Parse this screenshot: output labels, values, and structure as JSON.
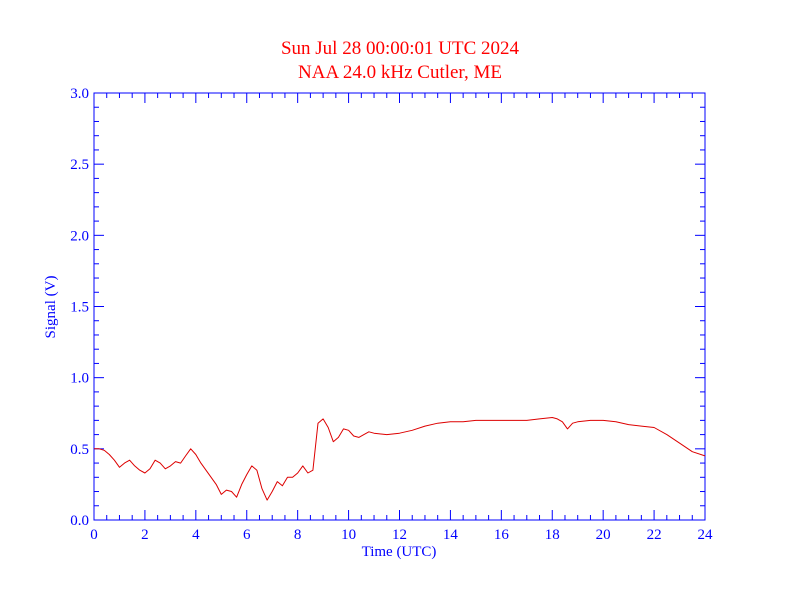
{
  "colors": {
    "title": "#ff0000",
    "axis": "#0000ff",
    "series": "#dd0000",
    "background": "#ffffff"
  },
  "chart_data": {
    "type": "line",
    "title": "Sun Jul 28 00:00:01 UTC 2024",
    "subtitle": "NAA 24.0 kHz Cutler, ME",
    "xlabel": "Time (UTC)",
    "ylabel": "Signal (V)",
    "xlim": [
      0,
      24
    ],
    "ylim": [
      0,
      3
    ],
    "x_ticks": [
      "0",
      "2",
      "4",
      "6",
      "8",
      "10",
      "12",
      "14",
      "16",
      "18",
      "20",
      "22",
      "24"
    ],
    "y_ticks": [
      "0.0",
      "0.5",
      "1.0",
      "1.5",
      "2.0",
      "2.5",
      "3.0"
    ],
    "grid": false,
    "series": [
      {
        "x": [
          0,
          0.2,
          0.4,
          0.6,
          0.8,
          1.0,
          1.2,
          1.4,
          1.6,
          1.8,
          2.0,
          2.2,
          2.4,
          2.6,
          2.8,
          3.0,
          3.2,
          3.4,
          3.6,
          3.8,
          4.0,
          4.2,
          4.4,
          4.6,
          4.8,
          5.0,
          5.2,
          5.4,
          5.6,
          5.8,
          6.0,
          6.2,
          6.4,
          6.6,
          6.8,
          7.0,
          7.2,
          7.4,
          7.6,
          7.8,
          8.0,
          8.2,
          8.4,
          8.6,
          8.8,
          9.0,
          9.2,
          9.4,
          9.6,
          9.8,
          10.0,
          10.2,
          10.4,
          10.6,
          10.8,
          11.0,
          11.5,
          12.0,
          12.5,
          13.0,
          13.5,
          14.0,
          14.5,
          15.0,
          15.5,
          16.0,
          16.5,
          17.0,
          17.5,
          18.0,
          18.2,
          18.4,
          18.6,
          18.8,
          19.0,
          19.5,
          20.0,
          20.5,
          21.0,
          21.5,
          22.0,
          22.5,
          23.0,
          23.5,
          24.0
        ],
        "y": [
          0.5,
          0.5,
          0.49,
          0.46,
          0.42,
          0.37,
          0.4,
          0.42,
          0.38,
          0.35,
          0.33,
          0.36,
          0.42,
          0.4,
          0.36,
          0.38,
          0.41,
          0.4,
          0.45,
          0.5,
          0.46,
          0.4,
          0.35,
          0.3,
          0.25,
          0.18,
          0.21,
          0.2,
          0.16,
          0.25,
          0.32,
          0.38,
          0.35,
          0.22,
          0.14,
          0.2,
          0.27,
          0.24,
          0.3,
          0.3,
          0.33,
          0.38,
          0.33,
          0.35,
          0.68,
          0.71,
          0.65,
          0.55,
          0.58,
          0.64,
          0.63,
          0.59,
          0.58,
          0.6,
          0.62,
          0.61,
          0.6,
          0.61,
          0.63,
          0.66,
          0.68,
          0.69,
          0.69,
          0.7,
          0.7,
          0.7,
          0.7,
          0.7,
          0.71,
          0.72,
          0.71,
          0.69,
          0.64,
          0.68,
          0.69,
          0.7,
          0.7,
          0.69,
          0.67,
          0.66,
          0.65,
          0.6,
          0.54,
          0.48,
          0.45
        ]
      }
    ]
  }
}
